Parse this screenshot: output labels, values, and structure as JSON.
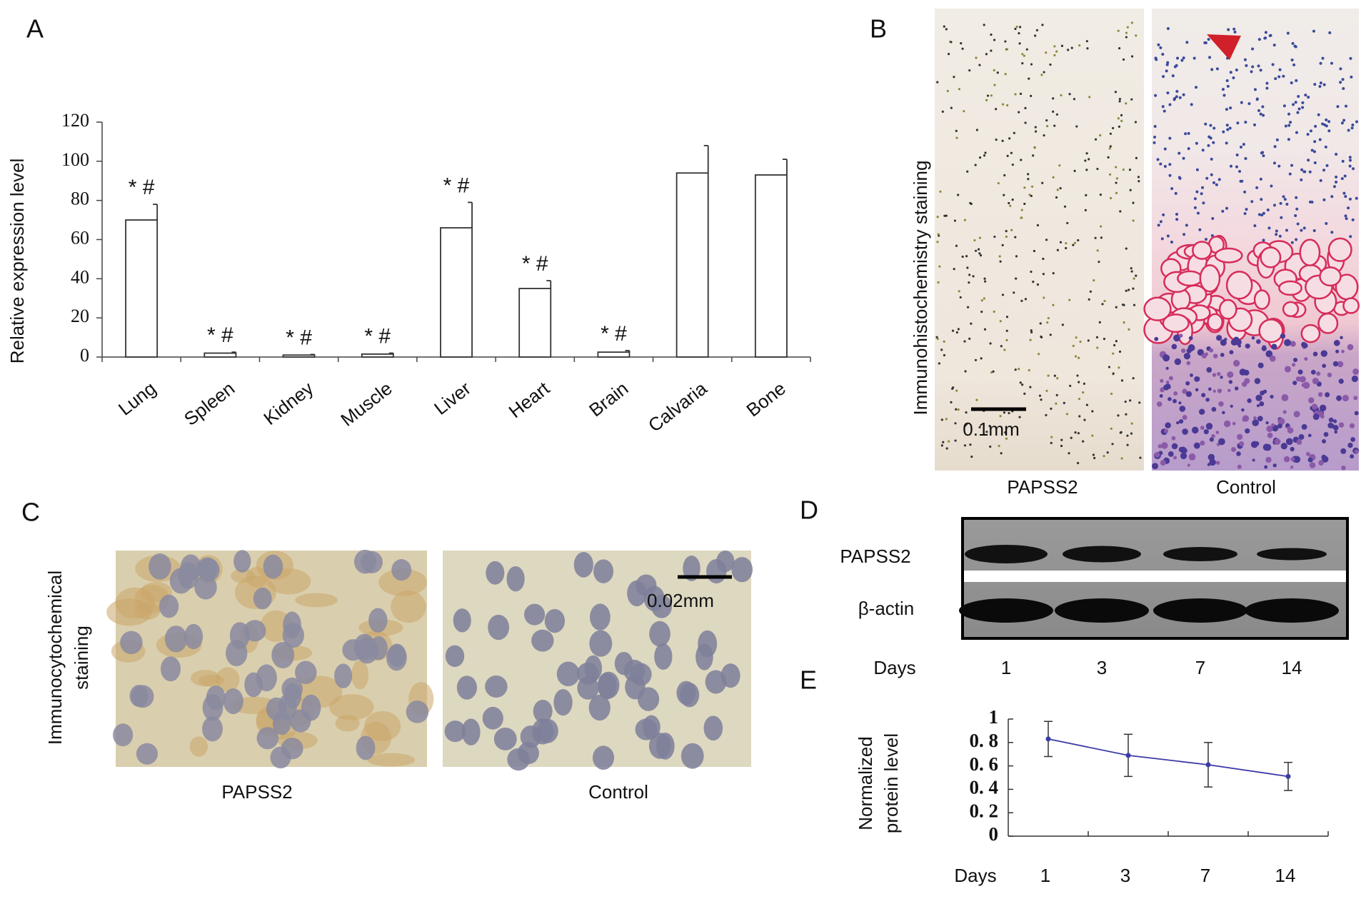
{
  "panel_labels": [
    "A",
    "B",
    "C",
    "D",
    "E"
  ],
  "chart_data": [
    {
      "type": "bar",
      "ylabel": "Relative expression level",
      "categories": [
        "Lung",
        "Spleen",
        "Kidney",
        "Muscle",
        "Liver",
        "Heart",
        "Brain",
        "Calvaria",
        "Bone"
      ],
      "values": [
        70,
        2,
        1,
        1.5,
        66,
        35,
        2.5,
        94,
        93
      ],
      "errors": [
        8,
        0.5,
        0.3,
        0.5,
        13,
        4,
        0.8,
        14,
        8
      ],
      "annotations": [
        "* #",
        "* #",
        "* #",
        "* #",
        "* #",
        "* #",
        "* #",
        null,
        null
      ],
      "color": "#ffffff",
      "edge_color": "#333333",
      "ylim": [
        0,
        120
      ],
      "yticks": [
        0,
        20,
        40,
        60,
        80,
        100,
        120
      ]
    },
    {
      "type": "line",
      "ylabel": [
        "Normalized",
        "protein level"
      ],
      "xlabel": "Days",
      "categories": [
        "1",
        "3",
        "7",
        "14"
      ],
      "values": [
        0.83,
        0.69,
        0.61,
        0.51
      ],
      "errors": [
        0.15,
        0.18,
        0.19,
        0.12
      ],
      "color": "#3b3ba8",
      "ylim": [
        0,
        1
      ],
      "yticks": [
        0,
        {
          "value": 0.2,
          "label": "0. 2"
        },
        {
          "value": 0.4,
          "label": "0. 4"
        },
        {
          "value": 0.6,
          "label": "0. 6"
        },
        {
          "value": 0.8,
          "label": "0. 8"
        },
        1
      ]
    }
  ],
  "panel_b": {
    "ylabel": "Immunohistochemistry staining",
    "scale_bar": "0.1mm",
    "captions": [
      "PAPSS2",
      "Control"
    ]
  },
  "panel_c": {
    "ylabel": [
      "Immunocytochemical",
      "staining"
    ],
    "scale_bar": "0.02mm",
    "captions": [
      "PAPSS2",
      "Control"
    ]
  },
  "panel_d": {
    "rows": [
      "PAPSS2",
      "β-actin"
    ],
    "xlabel": "Days",
    "days": [
      "1",
      "3",
      "7",
      "14"
    ]
  }
}
